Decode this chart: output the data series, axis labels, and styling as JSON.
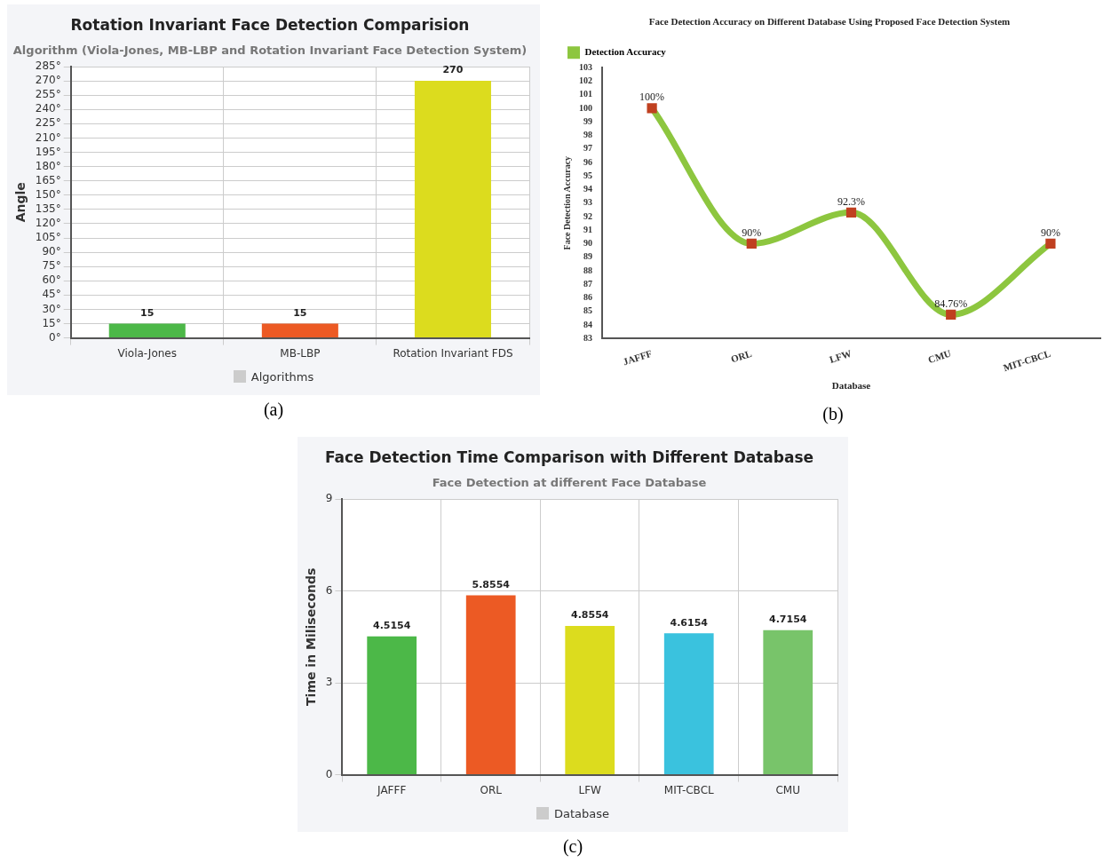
{
  "chart_data": [
    {
      "type": "bar",
      "title": "Rotation Invariant Face Detection Comparision",
      "subtitle": "Algorithm (Viola-Jones, MB-LBP and Rotation Invariant Face Detection System)",
      "ylabel": "Angle",
      "categories": [
        "Viola-Jones",
        "MB-LBP",
        "Rotation Invariant FDS"
      ],
      "series": [
        {
          "name": "Algorithms",
          "color": "#cccccc",
          "colors": [
            "#4cb848",
            "#ec5a24",
            "#dcdc1e"
          ],
          "values": [
            15,
            15,
            270
          ]
        }
      ],
      "ylim": [
        0,
        285
      ],
      "yticks": [
        {
          "value": 0,
          "label": "0°"
        },
        {
          "value": 15,
          "label": "15°"
        },
        {
          "value": 30,
          "label": "30°"
        },
        {
          "value": 45,
          "label": "45°"
        },
        {
          "value": 60,
          "label": "60°"
        },
        {
          "value": 75,
          "label": "75°"
        },
        {
          "value": 90,
          "label": "90°"
        },
        {
          "value": 105,
          "label": "105°"
        },
        {
          "value": 120,
          "label": "120°"
        },
        {
          "value": 135,
          "label": "135°"
        },
        {
          "value": 150,
          "label": "150°"
        },
        {
          "value": 165,
          "label": "165°"
        },
        {
          "value": 180,
          "label": "180°"
        },
        {
          "value": 195,
          "label": "195°"
        },
        {
          "value": 210,
          "label": "210°"
        },
        {
          "value": 225,
          "label": "225°"
        },
        {
          "value": 240,
          "label": "240°"
        },
        {
          "value": 255,
          "label": "255°"
        },
        {
          "value": 270,
          "label": "270°"
        },
        {
          "value": 285,
          "label": "285°"
        }
      ],
      "grid": true,
      "legend": "bottom",
      "data_labels": true,
      "annotations": [
        "(a)"
      ]
    },
    {
      "type": "line",
      "title": "Face Detection Accuracy on Different Database Using Proposed Face Detection System",
      "xlabel": "Database",
      "ylabel": "Face Detection Accuracy",
      "categories": [
        "JAFFF",
        "ORL",
        "LFW",
        "CMU",
        "MIT-CBCL"
      ],
      "series": [
        {
          "name": "Detection Accuracy",
          "color": "#8dc63f",
          "values": [
            100,
            90,
            92.3,
            84.76,
            90
          ],
          "value_labels": [
            "100%",
            "90%",
            "92.3%",
            "84.76%",
            "90%"
          ]
        }
      ],
      "ylim": [
        83,
        103
      ],
      "yticks": [
        83,
        84,
        85,
        86,
        87,
        88,
        89,
        90,
        91,
        92,
        93,
        94,
        95,
        96,
        97,
        98,
        99,
        100,
        101,
        102,
        103
      ],
      "grid": false,
      "legend": "top left",
      "marker": "square",
      "annotations": [
        "(b)"
      ]
    },
    {
      "type": "bar",
      "title": "Face Detection Time Comparison with Different Database",
      "subtitle": "Face Detection at different Face Database",
      "ylabel": "Time in Miliseconds",
      "categories": [
        "JAFFF",
        "ORL",
        "LFW",
        "MIT-CBCL",
        "CMU"
      ],
      "series": [
        {
          "name": "Database",
          "color": "#cccccc",
          "colors": [
            "#4cb848",
            "#ec5a24",
            "#dcdc1e",
            "#3ac2de",
            "#78c46a"
          ],
          "values": [
            4.5154,
            5.8554,
            4.8554,
            4.6154,
            4.7154
          ]
        }
      ],
      "ylim": [
        0,
        9
      ],
      "yticks": [
        0,
        3,
        6,
        9
      ],
      "grid": true,
      "legend": "bottom",
      "data_labels": true,
      "annotations": [
        "(c)"
      ]
    }
  ]
}
